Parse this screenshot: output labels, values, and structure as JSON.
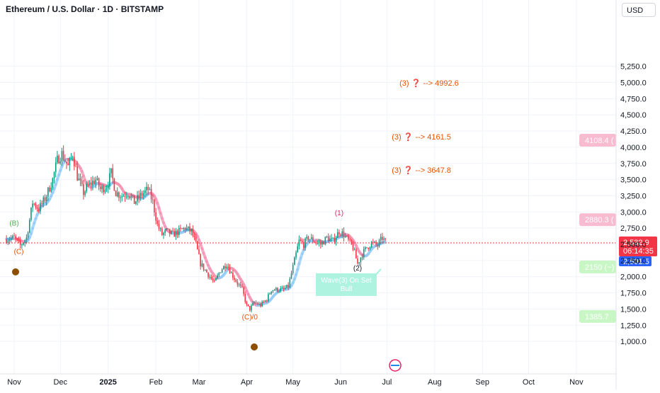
{
  "header": {
    "title": "Ethereum / U.S. Dollar · 1D · BITSTAMP",
    "currency": "USD"
  },
  "chart_data": {
    "type": "candlestick",
    "x_ticks": [
      "Nov",
      "Dec",
      "2025",
      "Feb",
      "Mar",
      "Apr",
      "May",
      "Jun",
      "Jul",
      "Aug",
      "Sep",
      "Oct",
      "Nov"
    ],
    "x_tick_days": [
      0,
      30,
      61,
      92,
      120,
      151,
      181,
      212,
      242,
      273,
      304,
      334,
      365
    ],
    "y_ticks": [
      1000,
      1250,
      1500,
      1750,
      2000,
      2250,
      2500,
      2750,
      3000,
      3250,
      3500,
      3750,
      4000,
      4250,
      4500,
      4750,
      5000,
      5250
    ],
    "y_tick_labels": [
      "1,000.0",
      "1,250.0",
      "1,500.0",
      "1,750.0",
      "2,000.0",
      "2,250.0",
      "2,500.0",
      "2,750.0",
      "3,000.0",
      "3,250.0",
      "3,500.0",
      "3,750.0",
      "4,000.0",
      "4,250.0",
      "4,500.0",
      "4,750.0",
      "5,000.0",
      "5,250.0"
    ],
    "price_anchors": [
      [
        -5,
        2580
      ],
      [
        0,
        2600
      ],
      [
        4,
        2480
      ],
      [
        8,
        2600
      ],
      [
        12,
        3150
      ],
      [
        16,
        3050
      ],
      [
        20,
        3200
      ],
      [
        25,
        3500
      ],
      [
        28,
        3800
      ],
      [
        31,
        3900
      ],
      [
        35,
        3700
      ],
      [
        38,
        3900
      ],
      [
        41,
        3550
      ],
      [
        45,
        3300
      ],
      [
        48,
        3400
      ],
      [
        53,
        3500
      ],
      [
        56,
        3350
      ],
      [
        60,
        3400
      ],
      [
        63,
        3600
      ],
      [
        66,
        3300
      ],
      [
        70,
        3250
      ],
      [
        74,
        3300
      ],
      [
        78,
        3150
      ],
      [
        82,
        3250
      ],
      [
        87,
        3350
      ],
      [
        90,
        3150
      ],
      [
        93,
        2800
      ],
      [
        96,
        2650
      ],
      [
        99,
        2700
      ],
      [
        103,
        2650
      ],
      [
        107,
        2700
      ],
      [
        111,
        2750
      ],
      [
        115,
        2700
      ],
      [
        118,
        2500
      ],
      [
        121,
        2200
      ],
      [
        124,
        2100
      ],
      [
        127,
        2000
      ],
      [
        130,
        1900
      ],
      [
        134,
        2100
      ],
      [
        138,
        2200
      ],
      [
        141,
        2050
      ],
      [
        145,
        1900
      ],
      [
        148,
        1800
      ],
      [
        151,
        1550
      ],
      [
        153,
        1500
      ],
      [
        156,
        1600
      ],
      [
        160,
        1560
      ],
      [
        164,
        1650
      ],
      [
        167,
        1800
      ],
      [
        171,
        1800
      ],
      [
        175,
        1800
      ],
      [
        178,
        1850
      ],
      [
        182,
        2250
      ],
      [
        185,
        2550
      ],
      [
        188,
        2500
      ],
      [
        191,
        2600
      ],
      [
        195,
        2550
      ],
      [
        199,
        2500
      ],
      [
        203,
        2600
      ],
      [
        207,
        2550
      ],
      [
        211,
        2700
      ],
      [
        214,
        2650
      ],
      [
        217,
        2550
      ],
      [
        220,
        2450
      ],
      [
        223,
        2200
      ],
      [
        226,
        2350
      ],
      [
        229,
        2450
      ],
      [
        232,
        2520
      ],
      [
        236,
        2480
      ],
      [
        239,
        2600
      ],
      [
        241,
        2530
      ]
    ],
    "last_price": "2,532.9",
    "countdown": "06:14:35",
    "secondary_price": "2,501.5",
    "targets": [
      {
        "label": "(3) ❓ --> 4992.6",
        "price": 4992.6,
        "day": 251
      },
      {
        "label": "(3) ❓ --> 4161.5",
        "price": 4161.5,
        "day": 246
      },
      {
        "label": "(3) ❓ --> 3647.8",
        "price": 3647.8,
        "day": 246
      }
    ],
    "level_tags": [
      {
        "text": "4108.4 (",
        "price": 4108.4
      },
      {
        "text": "2880.3 (",
        "price": 2880.3
      },
      {
        "text": "2150 (~)",
        "price": 2150
      },
      {
        "text": "1385.7",
        "price": 1385.7
      }
    ],
    "wave_labels": [
      {
        "text": "(B)",
        "day": 0,
        "price": 2790,
        "color": "#4caf50"
      },
      {
        "text": "(C)",
        "day": 3,
        "price": 2350,
        "color": "#e65100"
      },
      {
        "text": "(C)/0",
        "day": 153,
        "price": 1340,
        "color": "#e65100"
      },
      {
        "text": "(1)",
        "day": 211,
        "price": 2950,
        "color": "#e91e63"
      },
      {
        "text": "(2)",
        "day": 223,
        "price": 2095,
        "color": "#131722"
      }
    ],
    "note_box": {
      "line1": "Wave(3) On Set",
      "line2": "Bull"
    }
  }
}
